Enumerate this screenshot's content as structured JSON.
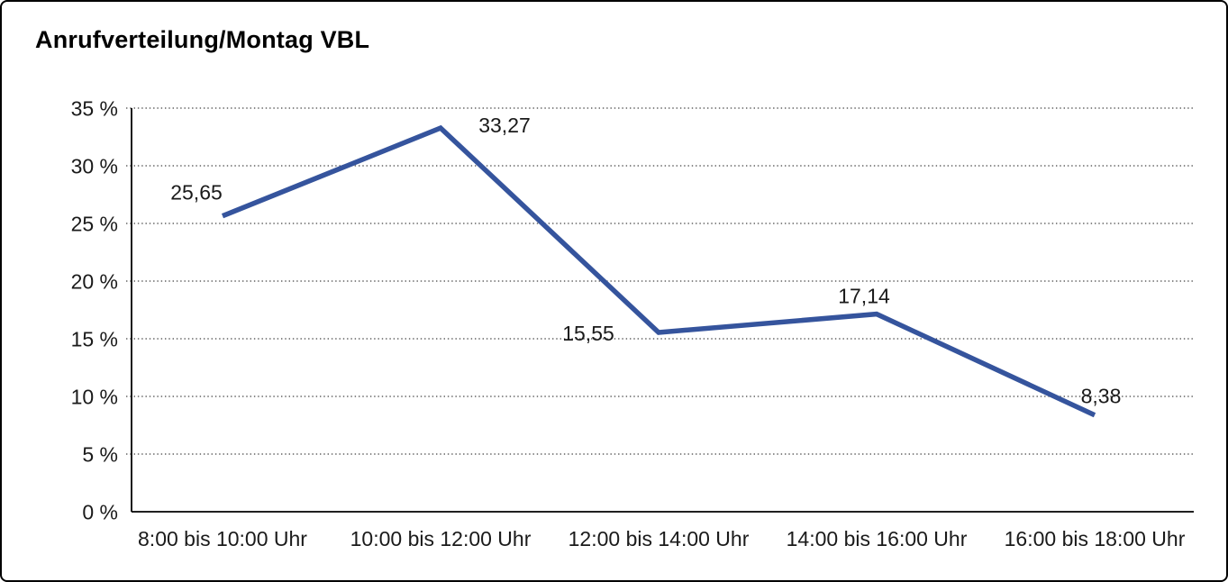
{
  "window": {
    "title": "Anrufverteilung/Montag VBL"
  },
  "chart_data": {
    "type": "line",
    "title": "Anrufverteilung/Montag VBL",
    "categories": [
      "8:00 bis 10:00 Uhr",
      "10:00 bis 12:00 Uhr",
      "12:00 bis 14:00 Uhr",
      "14:00 bis 16:00 Uhr",
      "16:00 bis 18:00 Uhr"
    ],
    "series": [
      {
        "name": "Anrufverteilung Montag VBL",
        "values": [
          25.65,
          33.27,
          15.55,
          17.14,
          8.38
        ],
        "value_labels": [
          "25,65",
          "33,27",
          "15,55",
          "17,14",
          "8,38"
        ],
        "color": "#35549D"
      }
    ],
    "xlabel": "",
    "ylabel": "",
    "ylim": [
      0,
      35
    ],
    "ytick_step": 5,
    "ytick_labels": [
      "0 %",
      "5 %",
      "10 %",
      "15 %",
      "20 %",
      "25 %",
      "30 %",
      "35 %"
    ],
    "grid": "horizontal-dotted",
    "gridline_color": "#404040",
    "axis_color": "#000000",
    "text_color": "#1a1a1a",
    "legend_position": "none",
    "markers": "none",
    "data_labels_shown": true
  }
}
